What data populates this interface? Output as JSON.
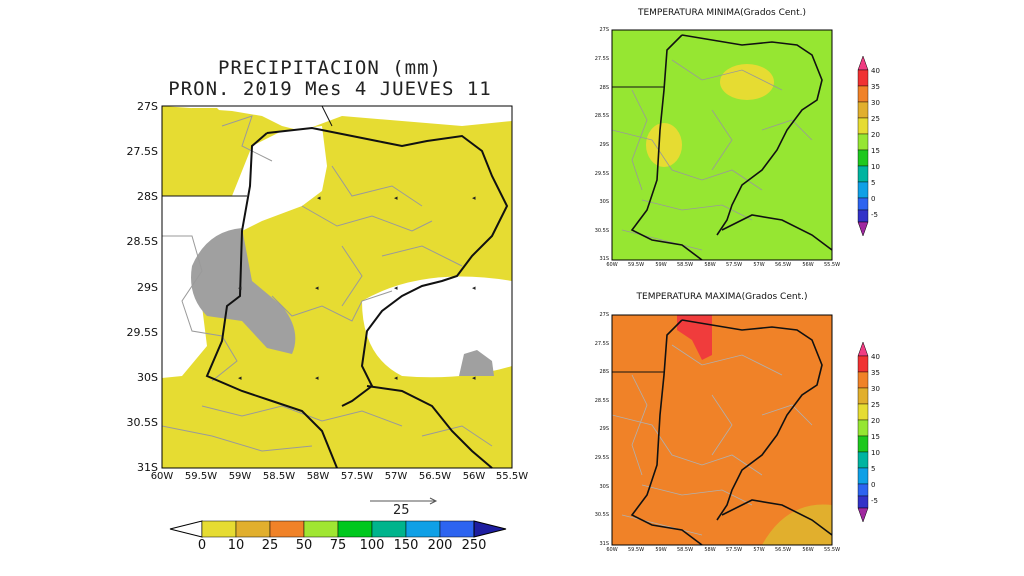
{
  "main_map": {
    "title_line1": "PRECIPITACION (mm)",
    "title_line2": "PRON. 2019 Mes 4 JUEVES 11",
    "lat_labels": [
      "27S",
      "27.5S",
      "28S",
      "28.5S",
      "29S",
      "29.5S",
      "30S",
      "30.5S",
      "31S"
    ],
    "lon_labels": [
      "60W",
      "59.5W",
      "59W",
      "58.5W",
      "58W",
      "57.5W",
      "57W",
      "56.5W",
      "56W",
      "55.5W"
    ],
    "vector_ref_value": "25",
    "colorbar_labels": [
      "0",
      "10",
      "25",
      "50",
      "75",
      "100",
      "150",
      "200",
      "250"
    ],
    "colorbar_colors": [
      "#ffffff",
      "#e6dc32",
      "#e1af2d",
      "#f08228",
      "#a0e632",
      "#00c81e",
      "#00b48c",
      "#0fa0e6",
      "#2d64f0",
      "#2828c8",
      "#1e1ea0"
    ],
    "fill_colors": {
      "rain_0_10": "#e6dc32",
      "dry": "#ffffff",
      "shaded": "#a0a0a0"
    }
  },
  "min_map": {
    "title": "TEMPERATURA MINIMA(Grados Cent.)",
    "lat_labels": [
      "27S",
      "27.5S",
      "28S",
      "28.5S",
      "29S",
      "29.5S",
      "30S",
      "30.5S",
      "31S"
    ],
    "lon_labels": [
      "60W",
      "59.5W",
      "59W",
      "58.5W",
      "58W",
      "57.5W",
      "57W",
      "56.5W",
      "56W",
      "55.5W"
    ],
    "fill_colors": {
      "base": "#96e632",
      "warm": "#e6dc32"
    }
  },
  "max_map": {
    "title": "TEMPERATURA MAXIMA(Grados Cent.)",
    "lat_labels": [
      "27S",
      "27.5S",
      "28S",
      "28.5S",
      "29S",
      "29.5S",
      "30S",
      "30.5S",
      "31S"
    ],
    "lon_labels": [
      "60W",
      "59.5W",
      "59W",
      "58.5W",
      "58W",
      "57.5W",
      "57W",
      "56.5W",
      "56W",
      "55.5W"
    ],
    "fill_colors": {
      "base": "#f08228",
      "hot": "#f03c3c",
      "cool": "#e1af2d"
    }
  },
  "temp_colorbar": {
    "labels": [
      "40",
      "35",
      "30",
      "25",
      "20",
      "15",
      "10",
      "5",
      "0",
      "-5"
    ],
    "colors": [
      "#f03c82",
      "#f03232",
      "#f08228",
      "#e1af2d",
      "#e6dc32",
      "#96e632",
      "#1ec81e",
      "#00b4a0",
      "#0fa0e6",
      "#2d64f0",
      "#3232c8",
      "#a028a0"
    ]
  }
}
